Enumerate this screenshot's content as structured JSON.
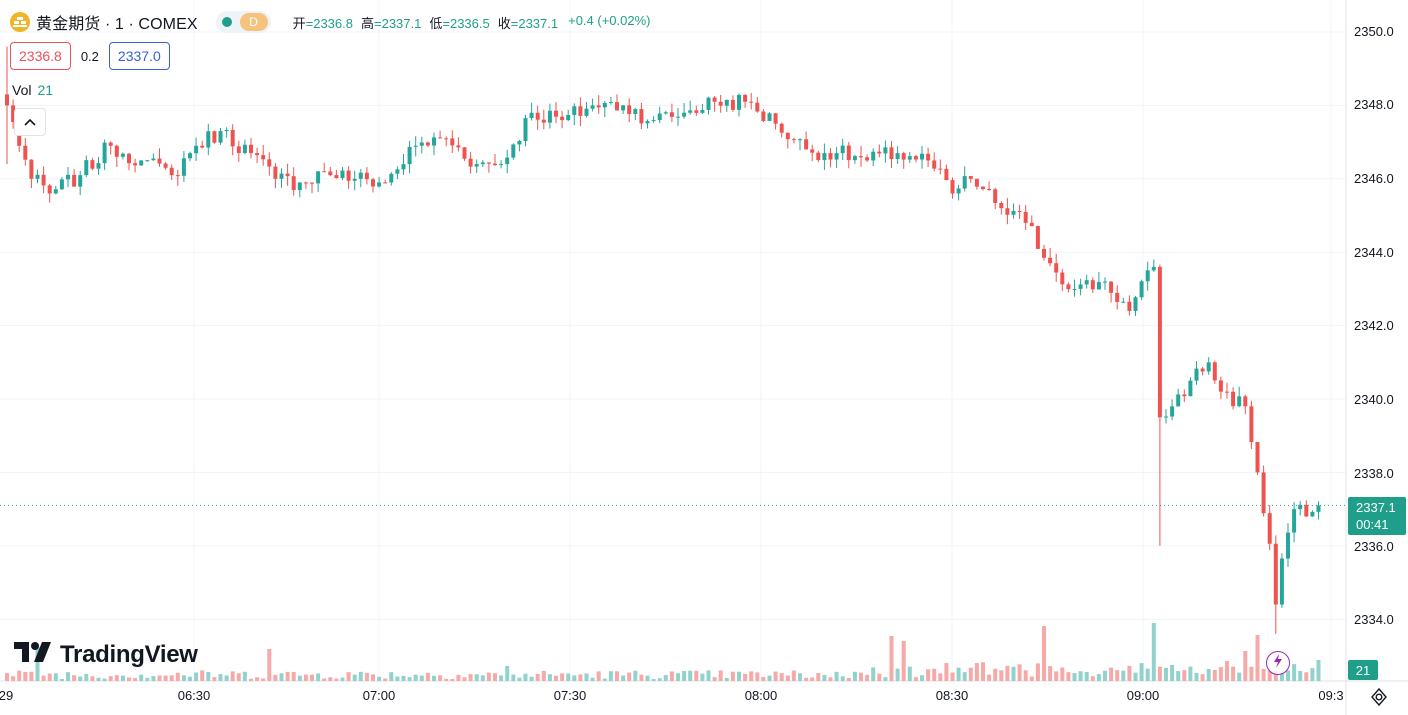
{
  "header": {
    "symbol_title": "黄金期货 · 1 · COMEX",
    "interval": "D",
    "open_label": "开",
    "open_value": "=2336.8",
    "high_label": "高",
    "high_value": "=2337.1",
    "low_label": "低",
    "low_value": "=2336.5",
    "close_label": "收",
    "close_value": "=2337.1",
    "change": "+0.4 (+0.02%)"
  },
  "quote": {
    "sell": "2336.8",
    "spread": "0.2",
    "buy": "2337.0"
  },
  "volume": {
    "label": "Vol",
    "value": "21"
  },
  "brand": {
    "name": "TradingView"
  },
  "colors": {
    "up": "#26a69a",
    "down": "#ef5350",
    "up_vol": "#92d2cc",
    "down_vol": "#f7a9a7",
    "grid": "#f0f3fa"
  },
  "last_price": {
    "price": "2337.1",
    "countdown": "00:41"
  },
  "y_axis": {
    "ticks": [
      "2350.0",
      "2348.0",
      "2346.0",
      "2344.0",
      "2342.0",
      "2340.0",
      "2338.0",
      "2336.0",
      "2334.0"
    ]
  },
  "x_axis": {
    "ticks": [
      "29",
      "06:30",
      "07:00",
      "07:30",
      "08:00",
      "08:30",
      "09:00",
      "09:3"
    ]
  },
  "chart_data": {
    "type": "candlestick",
    "title": "黄金期货 · 1 · COMEX",
    "x_ticks": [
      "06:30",
      "07:00",
      "07:30",
      "08:00",
      "08:30",
      "09:00"
    ],
    "ylim": [
      2332.8,
      2350.4
    ],
    "y_ticks": [
      2350,
      2348,
      2346,
      2344,
      2342,
      2340,
      2338,
      2336,
      2334
    ],
    "last": 2337.1,
    "ohlc_keypoints": [
      [
        0,
        2348.0
      ],
      [
        4,
        2346.0
      ],
      [
        7,
        2345.6
      ],
      [
        12,
        2346.1
      ],
      [
        17,
        2346.9
      ],
      [
        22,
        2346.5
      ],
      [
        27,
        2346.1
      ],
      [
        31,
        2346.9
      ],
      [
        35,
        2347.3
      ],
      [
        40,
        2346.7
      ],
      [
        44,
        2346.0
      ],
      [
        48,
        2345.9
      ],
      [
        52,
        2346.2
      ],
      [
        57,
        2346.0
      ],
      [
        62,
        2345.9
      ],
      [
        67,
        2346.9
      ],
      [
        72,
        2347.1
      ],
      [
        77,
        2346.4
      ],
      [
        81,
        2346.4
      ],
      [
        86,
        2347.8
      ],
      [
        91,
        2347.6
      ],
      [
        96,
        2348.0
      ],
      [
        101,
        2348.0
      ],
      [
        106,
        2347.6
      ],
      [
        111,
        2347.8
      ],
      [
        116,
        2348.1
      ],
      [
        121,
        2348.1
      ],
      [
        126,
        2347.5
      ],
      [
        131,
        2346.8
      ],
      [
        136,
        2346.7
      ],
      [
        141,
        2346.5
      ],
      [
        146,
        2346.7
      ],
      [
        151,
        2346.5
      ],
      [
        155,
        2345.6
      ],
      [
        158,
        2346.0
      ],
      [
        163,
        2345.2
      ],
      [
        167,
        2344.8
      ],
      [
        171,
        2343.7
      ],
      [
        175,
        2343.0
      ],
      [
        180,
        2343.2
      ],
      [
        184,
        2342.4
      ],
      [
        188,
        2343.6
      ],
      [
        189,
        2339.5
      ],
      [
        191,
        2339.8
      ],
      [
        194,
        2340.5
      ],
      [
        197,
        2341.0
      ],
      [
        199,
        2340.2
      ],
      [
        203,
        2339.8
      ],
      [
        205,
        2338.0
      ],
      [
        208,
        2335.0
      ],
      [
        211,
        2337.0
      ],
      [
        213,
        2336.8
      ],
      [
        215,
        2337.1
      ]
    ],
    "volume": {
      "last": 21,
      "peaks": [
        [
          5,
          35
        ],
        [
          43,
          32
        ],
        [
          82,
          15
        ],
        [
          145,
          45
        ],
        [
          147,
          40
        ],
        [
          170,
          55
        ],
        [
          188,
          58
        ],
        [
          203,
          30
        ],
        [
          205,
          46
        ]
      ]
    }
  }
}
